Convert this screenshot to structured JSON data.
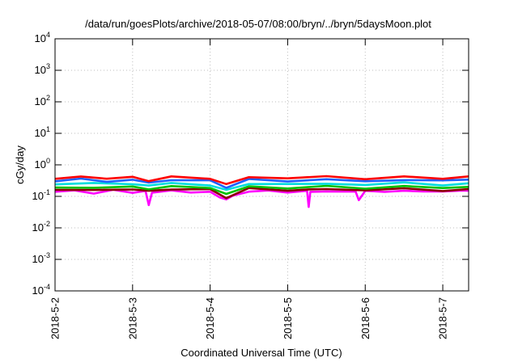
{
  "chart_data": {
    "type": "line",
    "title": "/data/run/goesPlots/archive/2018-05-07/08:00/bryn/../bryn/5daysMoon.plot",
    "xlabel": "Coordinated Universal Time (UTC)",
    "ylabel": "cGy/day",
    "yscale": "log",
    "ylim": [
      0.0001,
      10000
    ],
    "xlim": [
      "2018-5-2 00:00",
      "2018-5-7 08:00"
    ],
    "x_ticks": [
      "2018-5-2",
      "2018-5-3",
      "2018-5-4",
      "2018-5-5",
      "2018-5-6",
      "2018-5-7"
    ],
    "y_ticks": [
      {
        "value": 0.0001,
        "base": "10",
        "exp": "-4"
      },
      {
        "value": 0.001,
        "base": "10",
        "exp": "-3"
      },
      {
        "value": 0.01,
        "base": "10",
        "exp": "-2"
      },
      {
        "value": 0.1,
        "base": "10",
        "exp": "-1"
      },
      {
        "value": 1,
        "base": "10",
        "exp": "0"
      },
      {
        "value": 10,
        "base": "10",
        "exp": "1"
      },
      {
        "value": 100,
        "base": "10",
        "exp": "2"
      },
      {
        "value": 1000,
        "base": "10",
        "exp": "3"
      },
      {
        "value": 10000,
        "base": "10",
        "exp": "4"
      }
    ],
    "grid": true,
    "series": [
      {
        "color": "#ff00ff",
        "x": [
          "2018-5-2 00:00",
          "2018-5-2 06:00",
          "2018-5-2 12:00",
          "2018-5-2 18:00",
          "2018-5-3 00:00",
          "2018-5-3 04:00",
          "2018-5-3 05:00",
          "2018-5-3 06:00",
          "2018-5-3 12:00",
          "2018-5-3 18:00",
          "2018-5-4 00:00",
          "2018-5-4 03:00",
          "2018-5-4 05:00",
          "2018-5-4 07:00",
          "2018-5-4 12:00",
          "2018-5-4 18:00",
          "2018-5-5 00:00",
          "2018-5-5 06:00",
          "2018-5-5 06:30",
          "2018-5-5 07:00",
          "2018-5-5 12:00",
          "2018-5-5 18:00",
          "2018-5-5 21:00",
          "2018-5-5 22:00",
          "2018-5-6 00:00",
          "2018-5-6 06:00",
          "2018-5-6 12:00",
          "2018-5-6 18:00",
          "2018-5-7 00:00",
          "2018-5-7 06:00",
          "2018-5-7 08:00"
        ],
        "values": [
          0.14,
          0.15,
          0.13,
          0.15,
          0.14,
          0.14,
          0.055,
          0.13,
          0.15,
          0.14,
          0.13,
          0.1,
          0.075,
          0.11,
          0.14,
          0.15,
          0.14,
          0.14,
          0.05,
          0.13,
          0.15,
          0.14,
          0.14,
          0.08,
          0.14,
          0.15,
          0.14,
          0.15,
          0.14,
          0.15,
          0.15
        ]
      },
      {
        "color": "#8b0000",
        "x": [
          "2018-5-2 00:00",
          "2018-5-2 12:00",
          "2018-5-3 00:00",
          "2018-5-3 05:00",
          "2018-5-3 12:00",
          "2018-5-4 00:00",
          "2018-5-4 05:00",
          "2018-5-4 12:00",
          "2018-5-5 00:00",
          "2018-5-5 06:30",
          "2018-5-5 12:00",
          "2018-5-6 00:00",
          "2018-5-6 12:00",
          "2018-5-7 00:00",
          "2018-5-7 08:00"
        ],
        "values": [
          0.16,
          0.17,
          0.16,
          0.15,
          0.17,
          0.16,
          0.095,
          0.17,
          0.16,
          0.16,
          0.17,
          0.16,
          0.17,
          0.16,
          0.17
        ]
      },
      {
        "color": "#00c000",
        "x": [
          "2018-5-2 00:00",
          "2018-5-2 12:00",
          "2018-5-3 00:00",
          "2018-5-3 05:00",
          "2018-5-3 12:00",
          "2018-5-4 00:00",
          "2018-5-4 05:00",
          "2018-5-4 12:00",
          "2018-5-5 00:00",
          "2018-5-5 12:00",
          "2018-5-6 00:00",
          "2018-5-6 12:00",
          "2018-5-7 00:00",
          "2018-5-7 08:00"
        ],
        "values": [
          0.19,
          0.2,
          0.19,
          0.18,
          0.2,
          0.19,
          0.12,
          0.2,
          0.19,
          0.2,
          0.19,
          0.2,
          0.19,
          0.2
        ]
      },
      {
        "color": "#00dddd",
        "x": [
          "2018-5-2 00:00",
          "2018-5-2 12:00",
          "2018-5-3 00:00",
          "2018-5-3 05:00",
          "2018-5-3 12:00",
          "2018-5-4 00:00",
          "2018-5-4 05:00",
          "2018-5-4 12:00",
          "2018-5-5 00:00",
          "2018-5-5 12:00",
          "2018-5-6 00:00",
          "2018-5-6 12:00",
          "2018-5-7 00:00",
          "2018-5-7 08:00"
        ],
        "values": [
          0.24,
          0.26,
          0.24,
          0.23,
          0.25,
          0.24,
          0.15,
          0.26,
          0.24,
          0.25,
          0.24,
          0.26,
          0.24,
          0.26
        ]
      },
      {
        "color": "#1e60ff",
        "x": [
          "2018-5-2 00:00",
          "2018-5-2 08:00",
          "2018-5-2 16:00",
          "2018-5-3 00:00",
          "2018-5-3 05:00",
          "2018-5-3 12:00",
          "2018-5-4 00:00",
          "2018-5-4 05:00",
          "2018-5-4 12:00",
          "2018-5-5 00:00",
          "2018-5-5 12:00",
          "2018-5-6 00:00",
          "2018-5-6 12:00",
          "2018-5-7 00:00",
          "2018-5-7 08:00"
        ],
        "values": [
          0.3,
          0.34,
          0.31,
          0.32,
          0.28,
          0.33,
          0.31,
          0.2,
          0.33,
          0.32,
          0.33,
          0.31,
          0.33,
          0.31,
          0.34
        ]
      },
      {
        "color": "#ff0000",
        "x": [
          "2018-5-2 00:00",
          "2018-5-2 08:00",
          "2018-5-2 16:00",
          "2018-5-3 00:00",
          "2018-5-3 05:00",
          "2018-5-3 12:00",
          "2018-5-4 00:00",
          "2018-5-4 05:00",
          "2018-5-4 12:00",
          "2018-5-5 00:00",
          "2018-5-5 12:00",
          "2018-5-6 00:00",
          "2018-5-6 12:00",
          "2018-5-7 00:00",
          "2018-5-7 08:00"
        ],
        "values": [
          0.36,
          0.42,
          0.38,
          0.39,
          0.33,
          0.4,
          0.38,
          0.24,
          0.4,
          0.39,
          0.41,
          0.38,
          0.4,
          0.38,
          0.43
        ]
      }
    ]
  }
}
